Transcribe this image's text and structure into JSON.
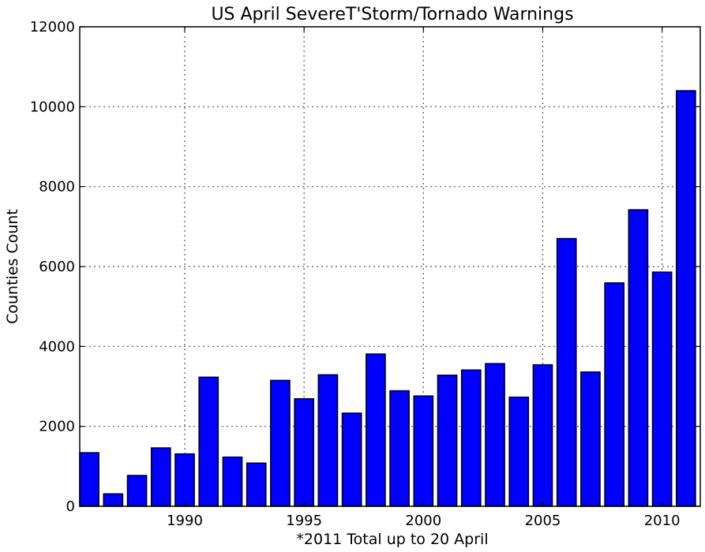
{
  "chart_data": {
    "type": "bar",
    "title": "US April SevereT'Storm/Tornado Warnings",
    "xlabel": "*2011 Total up to 20 April",
    "ylabel": "Counties Count",
    "categories": [
      "1986",
      "1987",
      "1988",
      "1989",
      "1990",
      "1991",
      "1992",
      "1993",
      "1994",
      "1995",
      "1996",
      "1997",
      "1998",
      "1999",
      "2000",
      "2001",
      "2002",
      "2003",
      "2004",
      "2005",
      "2006",
      "2007",
      "2008",
      "2009",
      "2010",
      "2011"
    ],
    "values": [
      1340,
      310,
      770,
      1460,
      1310,
      3230,
      1230,
      1080,
      3150,
      2690,
      3290,
      2330,
      3810,
      2890,
      2760,
      3280,
      3410,
      3570,
      2730,
      3540,
      6700,
      3360,
      5590,
      7420,
      5860,
      10400
    ],
    "xticks": [
      1990,
      1995,
      2000,
      2005,
      2010
    ],
    "xtick_labels": [
      "1990",
      "1995",
      "2000",
      "2005",
      "2010"
    ],
    "yticks": [
      0,
      2000,
      4000,
      6000,
      8000,
      10000,
      12000
    ],
    "ytick_labels": [
      "0",
      "2000",
      "4000",
      "6000",
      "8000",
      "10000",
      "12000"
    ],
    "xlim": [
      1985.6,
      2011.6
    ],
    "ylim": [
      0,
      12000
    ],
    "bar_color": "#0000ff",
    "grid": true,
    "legend": false
  }
}
